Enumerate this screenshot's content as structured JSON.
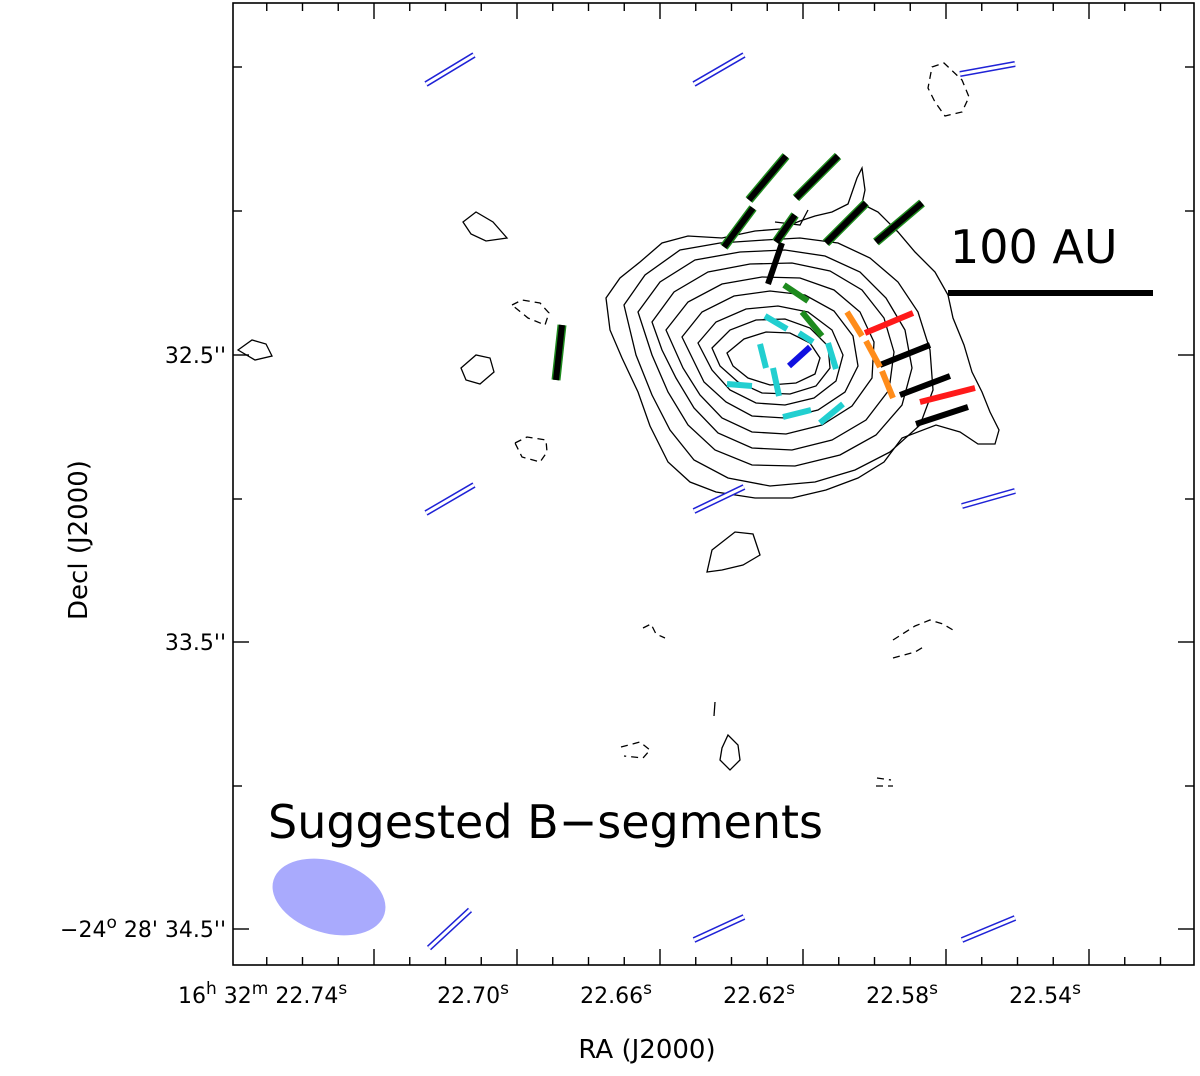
{
  "chart_data": {
    "type": "contour map with polarization vectors",
    "xlabel": "RA (J2000)",
    "ylabel": "Decl (J2000)",
    "x_ticks": [
      {
        "label_parts": [
          "16",
          "h",
          " 32",
          "m",
          " 22.74",
          "s"
        ],
        "sup": [
          false,
          true,
          false,
          true,
          false,
          true
        ]
      },
      {
        "label_parts": [
          "22.70",
          "s"
        ],
        "sup": [
          false,
          true
        ]
      },
      {
        "label_parts": [
          "22.66",
          "s"
        ],
        "sup": [
          false,
          true
        ]
      },
      {
        "label_parts": [
          "22.62",
          "s"
        ],
        "sup": [
          false,
          true
        ]
      },
      {
        "label_parts": [
          "22.58",
          "s"
        ],
        "sup": [
          false,
          true
        ]
      },
      {
        "label_parts": [
          "22.54",
          "s"
        ],
        "sup": [
          false,
          true
        ]
      }
    ],
    "y_ticks": [
      {
        "label_parts": [
          "32.5''"
        ],
        "sup": [
          false
        ]
      },
      {
        "label_parts": [
          "33.5''"
        ],
        "sup": [
          false
        ]
      },
      {
        "label_parts": [
          "−24",
          "o",
          " 28' 34.5''"
        ],
        "sup": [
          false,
          true,
          false
        ]
      }
    ],
    "annotations": {
      "scale_bar_label": "100 AU",
      "panel_label": "Suggested B−segments"
    },
    "beam_color": "#a9aafd",
    "contour_levels": 9,
    "colors": {
      "reference_vectors": "#1f22d6",
      "green": "#1d8a1d",
      "black": "#000000",
      "cyan": "#22cfd0",
      "blue": "#1010e0",
      "orange": "#ff8c1a",
      "red": "#ff1a1a"
    }
  }
}
